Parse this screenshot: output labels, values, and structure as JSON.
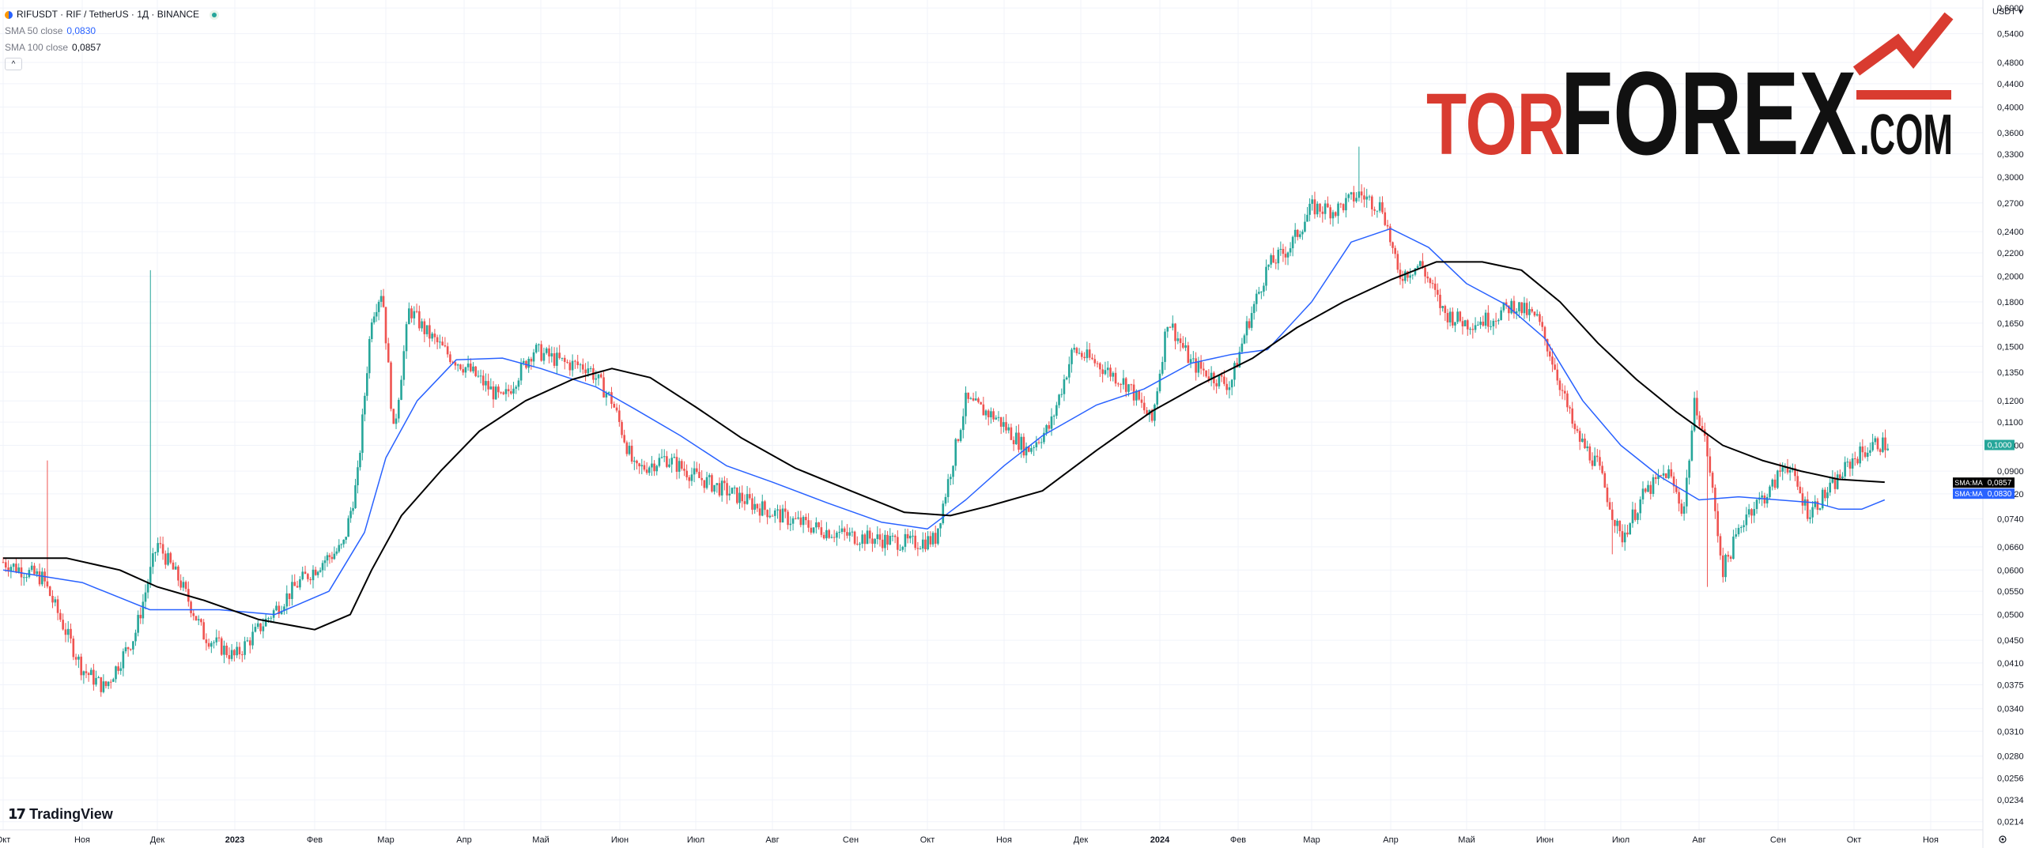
{
  "symbol": {
    "title": "RIFUSDT · RIF / TetherUS · 1Д · BINANCE",
    "sma50_label": "SMA 50 close",
    "sma50_value": "0,0830",
    "sma100_label": "SMA 100 close",
    "sma100_value": "0,0857",
    "collapse_glyph": "^"
  },
  "logo": {
    "part1": "TOR",
    "part2": "FOREX",
    "part3": ".COM",
    "color_red": "#d93b30",
    "color_black": "#111111"
  },
  "branding": {
    "name": "TradingView",
    "icon": "tradingview-logo-icon"
  },
  "currency": "USDT",
  "colors": {
    "up": "#26a69a",
    "down": "#ef5350",
    "sma50": "#2962ff",
    "sma100": "#000000",
    "grid": "#f0f3fa"
  },
  "chart_data": {
    "type": "candlestick",
    "symbol": "RIFUSDT",
    "timeframe": "1Д",
    "exchange": "BINANCE",
    "y_scale": "log",
    "y_ticks": [
      "0,6000",
      "0,5400",
      "0,4800",
      "0,4400",
      "0,4000",
      "0,3600",
      "0,3300",
      "0,3000",
      "0,2700",
      "0,2400",
      "0,2200",
      "0,2000",
      "0,1800",
      "0,1650",
      "0,1500",
      "0,1350",
      "0,1200",
      "0,1100",
      "0,1000",
      "0,0900",
      "0,0820",
      "0,0740",
      "0,0660",
      "0,0600",
      "0,0550",
      "0,0500",
      "0,0450",
      "0,0410",
      "0,0375",
      "0,0340",
      "0,0310",
      "0,0280",
      "0,0256",
      "0,0234",
      "0,0214"
    ],
    "y_tick_values": [
      0.6,
      0.54,
      0.48,
      0.44,
      0.4,
      0.36,
      0.33,
      0.3,
      0.27,
      0.24,
      0.22,
      0.2,
      0.18,
      0.165,
      0.15,
      0.135,
      0.12,
      0.11,
      0.1,
      0.09,
      0.082,
      0.074,
      0.066,
      0.06,
      0.055,
      0.05,
      0.045,
      0.041,
      0.0375,
      0.034,
      0.031,
      0.028,
      0.0256,
      0.0234,
      0.0214
    ],
    "x_ticks": [
      "Окт",
      "Ноя",
      "Дек",
      "2023",
      "Фев",
      "Мар",
      "Апр",
      "Май",
      "Июн",
      "Июл",
      "Авг",
      "Сен",
      "Окт",
      "Ноя",
      "Дек",
      "2024",
      "Фев",
      "Мар",
      "Апр",
      "Май",
      "Июн",
      "Июл",
      "Авг",
      "Сен",
      "Окт",
      "Ноя"
    ],
    "x_tick_bold": [
      false,
      false,
      false,
      true,
      false,
      false,
      false,
      false,
      false,
      false,
      false,
      false,
      false,
      false,
      false,
      true,
      false,
      false,
      false,
      false,
      false,
      false,
      false,
      false,
      false,
      false
    ],
    "x_tick_months_index": [
      0,
      1,
      2,
      3,
      4,
      5,
      6,
      7,
      8,
      9,
      10,
      11,
      12,
      13,
      14,
      15,
      16,
      17,
      18,
      19,
      20,
      21,
      22,
      23,
      24,
      25
    ],
    "price_path": [
      [
        0,
        0.062
      ],
      [
        0.5,
        0.058
      ],
      [
        1.0,
        0.04
      ],
      [
        1.3,
        0.037
      ],
      [
        1.7,
        0.046
      ],
      [
        1.9,
        0.059
      ],
      [
        2.0,
        0.067
      ],
      [
        2.3,
        0.057
      ],
      [
        2.6,
        0.046
      ],
      [
        3.0,
        0.042
      ],
      [
        3.4,
        0.049
      ],
      [
        3.8,
        0.057
      ],
      [
        4.1,
        0.062
      ],
      [
        4.4,
        0.066
      ],
      [
        4.6,
        0.087
      ],
      [
        4.8,
        0.17
      ],
      [
        4.95,
        0.19
      ],
      [
        5.1,
        0.105
      ],
      [
        5.3,
        0.175
      ],
      [
        5.5,
        0.16
      ],
      [
        5.8,
        0.145
      ],
      [
        6.1,
        0.135
      ],
      [
        6.5,
        0.12
      ],
      [
        6.9,
        0.148
      ],
      [
        7.3,
        0.14
      ],
      [
        7.6,
        0.138
      ],
      [
        7.9,
        0.12
      ],
      [
        8.2,
        0.09
      ],
      [
        8.6,
        0.095
      ],
      [
        9.0,
        0.088
      ],
      [
        9.4,
        0.083
      ],
      [
        9.8,
        0.078
      ],
      [
        10.2,
        0.074
      ],
      [
        10.6,
        0.071
      ],
      [
        11.0,
        0.069
      ],
      [
        11.4,
        0.068
      ],
      [
        11.8,
        0.067
      ],
      [
        12.1,
        0.068
      ],
      [
        12.3,
        0.09
      ],
      [
        12.5,
        0.12
      ],
      [
        12.9,
        0.112
      ],
      [
        13.3,
        0.098
      ],
      [
        13.6,
        0.108
      ],
      [
        13.9,
        0.148
      ],
      [
        14.2,
        0.14
      ],
      [
        14.6,
        0.128
      ],
      [
        14.9,
        0.11
      ],
      [
        15.1,
        0.168
      ],
      [
        15.4,
        0.14
      ],
      [
        15.7,
        0.132
      ],
      [
        15.9,
        0.128
      ],
      [
        16.1,
        0.16
      ],
      [
        16.4,
        0.208
      ],
      [
        16.7,
        0.225
      ],
      [
        17.0,
        0.265
      ],
      [
        17.3,
        0.262
      ],
      [
        17.6,
        0.28
      ],
      [
        17.9,
        0.265
      ],
      [
        18.1,
        0.2
      ],
      [
        18.4,
        0.21
      ],
      [
        18.7,
        0.172
      ],
      [
        19.0,
        0.165
      ],
      [
        19.3,
        0.168
      ],
      [
        19.6,
        0.178
      ],
      [
        19.9,
        0.168
      ],
      [
        20.1,
        0.142
      ],
      [
        20.4,
        0.105
      ],
      [
        20.7,
        0.092
      ],
      [
        21.0,
        0.068
      ],
      [
        21.3,
        0.082
      ],
      [
        21.6,
        0.09
      ],
      [
        21.8,
        0.076
      ],
      [
        21.95,
        0.121
      ],
      [
        22.1,
        0.098
      ],
      [
        22.3,
        0.06
      ],
      [
        22.6,
        0.076
      ],
      [
        22.9,
        0.083
      ],
      [
        23.1,
        0.094
      ],
      [
        23.4,
        0.076
      ],
      [
        23.7,
        0.084
      ],
      [
        24.0,
        0.095
      ],
      [
        24.3,
        0.101
      ],
      [
        24.45,
        0.1
      ]
    ],
    "last_price": {
      "label": "0,1000",
      "value": 0.1
    },
    "series": [
      {
        "name": "SMA 50 close",
        "color": "#2962ff",
        "last": "0,0830",
        "tag": "SMA:MA",
        "path": [
          [
            0,
            0.06
          ],
          [
            1.0,
            0.057
          ],
          [
            1.9,
            0.051
          ],
          [
            2.8,
            0.051
          ],
          [
            3.5,
            0.05
          ],
          [
            4.2,
            0.055
          ],
          [
            4.7,
            0.07
          ],
          [
            5.0,
            0.095
          ],
          [
            5.4,
            0.12
          ],
          [
            5.9,
            0.142
          ],
          [
            6.5,
            0.143
          ],
          [
            7.0,
            0.137
          ],
          [
            7.7,
            0.127
          ],
          [
            8.2,
            0.116
          ],
          [
            8.8,
            0.104
          ],
          [
            9.4,
            0.092
          ],
          [
            10.0,
            0.086
          ],
          [
            10.7,
            0.079
          ],
          [
            11.4,
            0.073
          ],
          [
            12.0,
            0.071
          ],
          [
            12.5,
            0.08
          ],
          [
            13.0,
            0.092
          ],
          [
            13.5,
            0.104
          ],
          [
            14.2,
            0.118
          ],
          [
            14.8,
            0.126
          ],
          [
            15.4,
            0.14
          ],
          [
            15.9,
            0.145
          ],
          [
            16.4,
            0.148
          ],
          [
            17.0,
            0.18
          ],
          [
            17.5,
            0.23
          ],
          [
            18.0,
            0.243
          ],
          [
            18.5,
            0.225
          ],
          [
            19.0,
            0.194
          ],
          [
            19.5,
            0.178
          ],
          [
            20.0,
            0.155
          ],
          [
            20.5,
            0.12
          ],
          [
            21.0,
            0.1
          ],
          [
            21.5,
            0.088
          ],
          [
            22.0,
            0.08
          ],
          [
            22.5,
            0.081
          ],
          [
            23.0,
            0.08
          ],
          [
            23.5,
            0.079
          ],
          [
            23.8,
            0.077
          ],
          [
            24.1,
            0.077
          ],
          [
            24.4,
            0.08
          ]
        ]
      },
      {
        "name": "SMA 100 close",
        "color": "#000000",
        "last": "0,0857",
        "tag": "SMA:MA",
        "path": [
          [
            0,
            0.063
          ],
          [
            0.8,
            0.063
          ],
          [
            1.5,
            0.06
          ],
          [
            2.0,
            0.056
          ],
          [
            2.6,
            0.053
          ],
          [
            3.3,
            0.049
          ],
          [
            4.0,
            0.047
          ],
          [
            4.5,
            0.05
          ],
          [
            4.8,
            0.06
          ],
          [
            5.2,
            0.075
          ],
          [
            5.7,
            0.09
          ],
          [
            6.2,
            0.106
          ],
          [
            6.8,
            0.12
          ],
          [
            7.4,
            0.131
          ],
          [
            7.9,
            0.137
          ],
          [
            8.4,
            0.132
          ],
          [
            9.0,
            0.117
          ],
          [
            9.6,
            0.103
          ],
          [
            10.3,
            0.091
          ],
          [
            11.0,
            0.083
          ],
          [
            11.7,
            0.076
          ],
          [
            12.3,
            0.075
          ],
          [
            12.8,
            0.078
          ],
          [
            13.5,
            0.083
          ],
          [
            14.2,
            0.098
          ],
          [
            14.9,
            0.115
          ],
          [
            15.5,
            0.128
          ],
          [
            16.2,
            0.143
          ],
          [
            16.8,
            0.162
          ],
          [
            17.4,
            0.18
          ],
          [
            18.0,
            0.197
          ],
          [
            18.6,
            0.212
          ],
          [
            19.2,
            0.212
          ],
          [
            19.7,
            0.205
          ],
          [
            20.2,
            0.18
          ],
          [
            20.7,
            0.152
          ],
          [
            21.2,
            0.131
          ],
          [
            21.7,
            0.115
          ],
          [
            22.3,
            0.1
          ],
          [
            22.8,
            0.094
          ],
          [
            23.3,
            0.09
          ],
          [
            23.8,
            0.087
          ],
          [
            24.4,
            0.086
          ]
        ]
      }
    ],
    "tags": [
      {
        "label": "SMA:MA",
        "value": "0,0857",
        "bg": "#000000"
      },
      {
        "label": "SMA:MA",
        "value": "0,0830",
        "bg": "#2962ff"
      }
    ],
    "grid": true
  }
}
